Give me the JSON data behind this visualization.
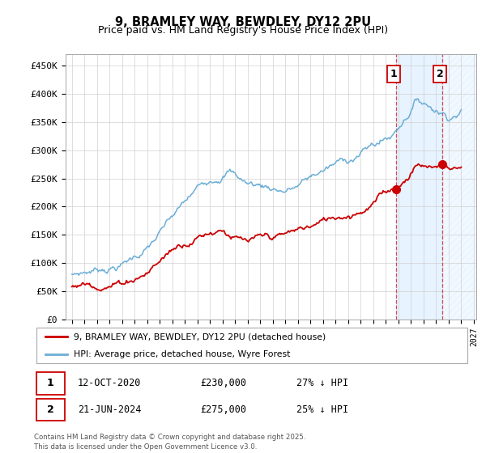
{
  "title": "9, BRAMLEY WAY, BEWDLEY, DY12 2PU",
  "subtitle": "Price paid vs. HM Land Registry's House Price Index (HPI)",
  "ylabel_ticks": [
    "£0",
    "£50K",
    "£100K",
    "£150K",
    "£200K",
    "£250K",
    "£300K",
    "£350K",
    "£400K",
    "£450K"
  ],
  "ytick_values": [
    0,
    50000,
    100000,
    150000,
    200000,
    250000,
    300000,
    350000,
    400000,
    450000
  ],
  "ylim": [
    0,
    470000
  ],
  "xlim_start": 1994.5,
  "xlim_end": 2027.2,
  "hpi_color": "#6baed6",
  "price_color": "#cc0000",
  "vline_color": "#cc2222",
  "shade_color": "#ddeeff",
  "legend_label_red": "9, BRAMLEY WAY, BEWDLEY, DY12 2PU (detached house)",
  "legend_label_blue": "HPI: Average price, detached house, Wyre Forest",
  "annotation_1_date": "12-OCT-2020",
  "annotation_1_price": "£230,000",
  "annotation_1_note": "27% ↓ HPI",
  "annotation_2_date": "21-JUN-2024",
  "annotation_2_price": "£275,000",
  "annotation_2_note": "25% ↓ HPI",
  "footer": "Contains HM Land Registry data © Crown copyright and database right 2025.\nThis data is licensed under the Open Government Licence v3.0.",
  "sale_1_x": 2020.79,
  "sale_1_y": 230000,
  "sale_2_x": 2024.47,
  "sale_2_y": 275000
}
